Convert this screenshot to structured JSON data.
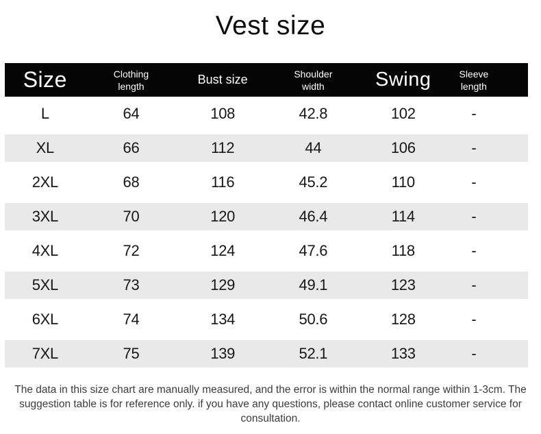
{
  "title": "Vest size",
  "chart_data": {
    "type": "table",
    "title": "Vest size",
    "columns": [
      {
        "label": "Size"
      },
      {
        "label": "Clothing\nlength"
      },
      {
        "label": "Bust size"
      },
      {
        "label": "Shoulder\nwidth"
      },
      {
        "label": "Swing"
      },
      {
        "label": "Sleeve\nlength"
      }
    ],
    "rows": [
      [
        "L",
        "64",
        "108",
        "42.8",
        "102",
        "-"
      ],
      [
        "XL",
        "66",
        "112",
        "44",
        "106",
        "-"
      ],
      [
        "2XL",
        "68",
        "116",
        "45.2",
        "110",
        "-"
      ],
      [
        "3XL",
        "70",
        "120",
        "46.4",
        "114",
        "-"
      ],
      [
        "4XL",
        "72",
        "124",
        "47.6",
        "118",
        "-"
      ],
      [
        "5XL",
        "73",
        "129",
        "49.1",
        "123",
        "-"
      ],
      [
        "6XL",
        "74",
        "134",
        "50.6",
        "128",
        "-"
      ],
      [
        "7XL",
        "75",
        "139",
        "52.1",
        "133",
        "-"
      ]
    ],
    "layout_hints": {
      "alternating_row_shading": "even rows white, odd rows light gray",
      "units": "cm"
    }
  },
  "footer": {
    "note": "The data in this size chart are manually measured, and the error is within the normal range within 1-3cm. The suggestion table is for reference only. if you have any questions, please contact online customer service for consultation."
  },
  "colors": {
    "header_bg": "#050505",
    "header_text": "#ffffff",
    "row_alt_bg": "#e9e9e9",
    "body_text": "#161616",
    "note_text": "#3c3c3c"
  }
}
